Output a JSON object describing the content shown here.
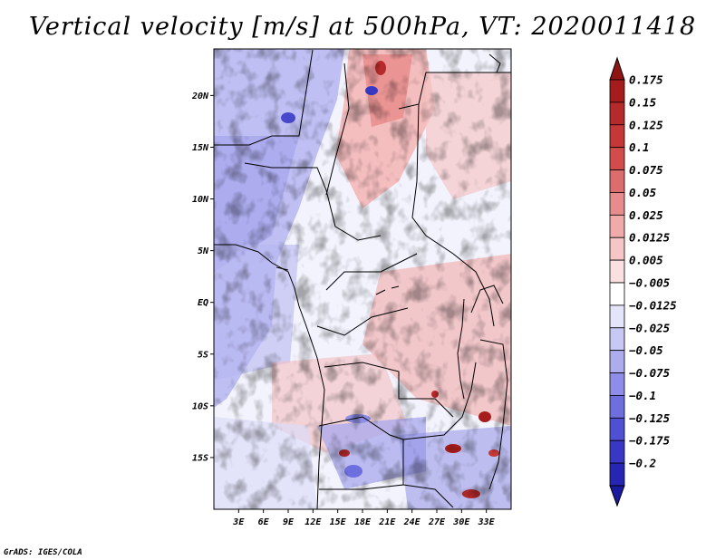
{
  "title": "Vertical velocity [m/s] at 500hPa, VT: 2020011418",
  "credit": "GrADS: IGES/COLA",
  "map": {
    "lon_range": [
      0,
      36
    ],
    "lat_range": [
      -20,
      24.5
    ],
    "lat_ticks": [
      {
        "value": 20,
        "label": "20N"
      },
      {
        "value": 15,
        "label": "15N"
      },
      {
        "value": 10,
        "label": "10N"
      },
      {
        "value": 5,
        "label": "5N"
      },
      {
        "value": 0,
        "label": "EQ"
      },
      {
        "value": -5,
        "label": "5S"
      },
      {
        "value": -10,
        "label": "10S"
      },
      {
        "value": -15,
        "label": "15S"
      }
    ],
    "lon_ticks": [
      {
        "value": 3,
        "label": "3E"
      },
      {
        "value": 6,
        "label": "6E"
      },
      {
        "value": 9,
        "label": "9E"
      },
      {
        "value": 12,
        "label": "12E"
      },
      {
        "value": 15,
        "label": "15E"
      },
      {
        "value": 18,
        "label": "18E"
      },
      {
        "value": 21,
        "label": "21E"
      },
      {
        "value": 24,
        "label": "24E"
      },
      {
        "value": 27,
        "label": "27E"
      },
      {
        "value": 30,
        "label": "30E"
      },
      {
        "value": 33,
        "label": "33E"
      }
    ]
  },
  "colorbar": {
    "levels": [
      {
        "label": "0.175",
        "color": "#a51c1c"
      },
      {
        "label": "0.15",
        "color": "#b52a2a"
      },
      {
        "label": "0.125",
        "color": "#c53838"
      },
      {
        "label": "0.1",
        "color": "#d24c4c"
      },
      {
        "label": "0.075",
        "color": "#dd6c6c"
      },
      {
        "label": "0.05",
        "color": "#e78c8c"
      },
      {
        "label": "0.025",
        "color": "#f0aaaa"
      },
      {
        "label": "0.0125",
        "color": "#f6c6c6"
      },
      {
        "label": "0.005",
        "color": "#fae0e0"
      },
      {
        "label": "−0.005",
        "color": "#ffffff"
      },
      {
        "label": "−0.0125",
        "color": "#e4e4fb"
      },
      {
        "label": "−0.025",
        "color": "#c8c8f5"
      },
      {
        "label": "−0.05",
        "color": "#acacef"
      },
      {
        "label": "−0.075",
        "color": "#8e8ee8"
      },
      {
        "label": "−0.1",
        "color": "#6e6edf"
      },
      {
        "label": "−0.125",
        "color": "#5050d2"
      },
      {
        "label": "−0.175",
        "color": "#3838c4"
      },
      {
        "label": "−0.2",
        "color": "#2626b2"
      }
    ],
    "top_arrow_color": "#8f1414",
    "bottom_arrow_color": "#1a1aa0"
  }
}
